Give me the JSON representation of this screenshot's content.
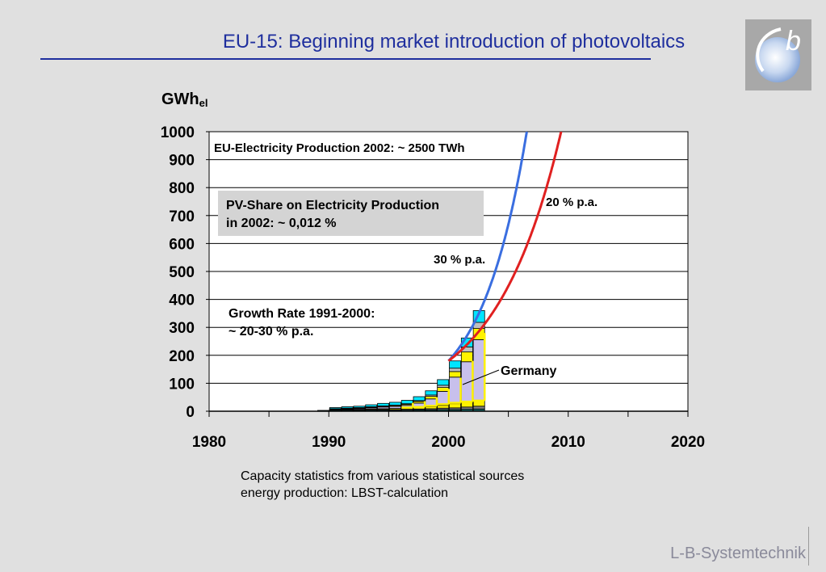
{
  "slide": {
    "title": "EU-15: Beginning market introduction of  photovoltaics",
    "footnote_line1": "Capacity statistics from various statistical sources",
    "footnote_line2": "energy production: LBST-calculation",
    "company": "L-B-Systemtechnik",
    "logo_letter": "b"
  },
  "chart_data": {
    "type": "bar",
    "ylabel_main": "GWh",
    "ylabel_sub": "el",
    "ylim": [
      0,
      1000
    ],
    "xlim": [
      1980,
      2020
    ],
    "y_ticks": [
      "0",
      "100",
      "200",
      "300",
      "400",
      "500",
      "600",
      "700",
      "800",
      "900",
      "1000"
    ],
    "x_ticks": [
      "1980",
      "1990",
      "2000",
      "2010",
      "2020"
    ],
    "grid": true,
    "years": [
      1989,
      1990,
      1991,
      1992,
      1993,
      1994,
      1995,
      1996,
      1997,
      1998,
      1999,
      2000,
      2001,
      2002
    ],
    "series": [
      {
        "color": "#1a6a6a",
        "values": [
          3,
          4,
          4,
          4,
          4,
          4,
          4,
          4,
          5,
          5,
          6,
          6,
          7,
          8
        ]
      },
      {
        "color": "#808080",
        "values": [
          0,
          1,
          1,
          1,
          2,
          2,
          2,
          3,
          3,
          4,
          5,
          6,
          8,
          10
        ]
      },
      {
        "color": "#fff200",
        "values": [
          0,
          1,
          2,
          2,
          3,
          3,
          4,
          4,
          5,
          7,
          10,
          15,
          17,
          18
        ]
      },
      {
        "color": "#c8c0ec",
        "values": [
          0,
          2,
          2,
          3,
          4,
          6,
          7,
          10,
          16,
          28,
          50,
          95,
          145,
          220
        ]
      },
      {
        "color": "#fff200",
        "values": [
          0,
          1,
          1,
          2,
          2,
          3,
          3,
          4,
          6,
          9,
          14,
          20,
          35,
          40
        ]
      },
      {
        "color": "#bfbfbf",
        "values": [
          0,
          0,
          1,
          1,
          1,
          1,
          2,
          2,
          3,
          5,
          8,
          12,
          18,
          22
        ]
      },
      {
        "color": "#00e5ff",
        "values": [
          0,
          4,
          5,
          5,
          7,
          9,
          10,
          12,
          14,
          15,
          20,
          26,
          32,
          42
        ]
      }
    ],
    "growth_curves": [
      {
        "label": "30 % p.a.",
        "color": "#3a6ee0",
        "start_year": 2000,
        "start_value": 180,
        "rate": 0.3
      },
      {
        "label": "20 % p.a.",
        "color": "#e02020",
        "start_year": 2000,
        "start_value": 180,
        "rate": 0.2
      }
    ],
    "annotations": {
      "eu_production": "EU-Electricity Production 2002: ~ 2500 TWh",
      "pv_share_line1": "PV-Share on Electricity Production",
      "pv_share_line2": "in 2002: ~ 0,012 %",
      "growth_rate_line1": "Growth Rate 1991-2000:",
      "growth_rate_line2": "~ 20-30 % p.a.",
      "germany": "Germany"
    },
    "germany_highlight": {
      "color": "#fff200",
      "years": [
        1996,
        1997,
        1998,
        1999,
        2000,
        2001,
        2002
      ],
      "base": [
        13,
        15,
        19,
        25,
        30,
        34,
        38
      ],
      "top": [
        30,
        36,
        50,
        80,
        120,
        180,
        280
      ]
    }
  }
}
